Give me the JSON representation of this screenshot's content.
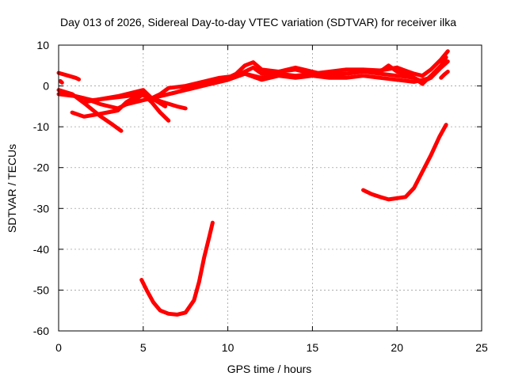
{
  "chart_data": {
    "type": "line",
    "title": "Day 013 of 2026, Sidereal Day-to-day VTEC variation (SDTVAR) for receiver ilka",
    "xlabel": "GPS time / hours",
    "ylabel": "SDTVAR / TECUs",
    "xlim": [
      0,
      25
    ],
    "ylim": [
      -60,
      10
    ],
    "xticks": [
      0,
      5,
      10,
      15,
      20,
      25
    ],
    "yticks": [
      -60,
      -50,
      -40,
      -30,
      -20,
      -10,
      0,
      10
    ],
    "xtick_labels": [
      "0",
      "5",
      "10",
      "15",
      "20",
      "25"
    ],
    "ytick_labels": [
      "-60",
      "-50",
      "-40",
      "-30",
      "-20",
      "-10",
      "0",
      "10"
    ],
    "grid": true,
    "color": "#ff0000",
    "series": [
      {
        "name": "arc-a",
        "x": [
          0.0,
          0.5,
          1.0,
          1.2
        ],
        "y": [
          3.2,
          2.6,
          2.0,
          1.6
        ]
      },
      {
        "name": "arc-b",
        "x": [
          0.1,
          0.2
        ],
        "y": [
          1.2,
          0.8
        ]
      },
      {
        "name": "arc-c",
        "x": [
          0.0,
          1.0,
          2.0,
          3.0,
          4.0,
          4.8,
          5.5,
          6.2,
          7.0,
          7.5
        ],
        "y": [
          -2.0,
          -2.5,
          -3.5,
          -3.0,
          -2.5,
          -2.0,
          -3.0,
          -4.0,
          -5.0,
          -5.5
        ]
      },
      {
        "name": "arc-d",
        "x": [
          0.0,
          0.8,
          1.6,
          2.5,
          3.2,
          3.7
        ],
        "y": [
          -1.0,
          -2.0,
          -4.5,
          -7.5,
          -9.5,
          -11.0
        ]
      },
      {
        "name": "arc-e",
        "x": [
          0.5,
          1.5,
          2.5,
          3.5,
          4.5,
          5.0,
          5.5,
          6.0,
          6.5
        ],
        "y": [
          -2.0,
          -3.0,
          -4.5,
          -5.5,
          -3.5,
          -2.0,
          -4.0,
          -6.5,
          -8.5
        ]
      },
      {
        "name": "arc-f",
        "x": [
          0.8,
          1.5,
          2.5,
          3.5,
          4.0,
          5.0,
          5.5,
          6.3
        ],
        "y": [
          -6.5,
          -7.5,
          -6.8,
          -6.0,
          -4.0,
          -1.5,
          -3.0,
          -5.0
        ]
      },
      {
        "name": "arc-g",
        "x": [
          1.5,
          2.5,
          3.5,
          4.5,
          5.0,
          5.5,
          6.0,
          6.5,
          7.5,
          8.5,
          9.5,
          10.5,
          11.0,
          11.5,
          12.0,
          13.0,
          14.0,
          15.0,
          16.0,
          17.0,
          18.0,
          19.0,
          20.0,
          21.0,
          21.5,
          22.0,
          22.6,
          23.0
        ],
        "y": [
          -4.0,
          -3.2,
          -2.5,
          -1.5,
          -1.0,
          -3.0,
          -2.0,
          -0.5,
          0.0,
          1.0,
          2.0,
          2.5,
          3.5,
          4.5,
          3.0,
          3.5,
          4.0,
          3.0,
          3.5,
          4.0,
          4.0,
          3.8,
          4.5,
          3.0,
          2.5,
          4.0,
          6.5,
          8.5
        ]
      },
      {
        "name": "arc-h",
        "x": [
          4.0,
          5.0,
          6.0,
          7.0,
          8.0,
          9.0,
          10.0,
          11.0,
          12.0,
          13.0,
          14.0,
          15.0,
          16.0,
          17.0,
          18.0,
          19.0,
          20.0,
          21.0,
          21.5,
          22.0,
          22.6,
          23.0
        ],
        "y": [
          -4.5,
          -3.5,
          -2.5,
          -1.5,
          -0.5,
          0.5,
          1.5,
          3.0,
          2.0,
          3.0,
          2.5,
          3.0,
          3.0,
          3.0,
          3.5,
          3.0,
          2.5,
          2.0,
          1.0,
          2.0,
          4.5,
          6.0
        ]
      },
      {
        "name": "arc-i",
        "x": [
          6.0,
          7.0,
          8.0,
          9.0,
          10.0,
          10.5,
          11.0,
          11.5,
          12.0,
          13.0,
          14.0,
          15.0,
          16.0,
          17.0,
          18.0,
          19.0,
          19.5,
          20.0,
          20.5,
          21.0,
          21.5,
          22.0,
          22.6,
          22.9
        ],
        "y": [
          -2.5,
          -1.5,
          0.0,
          1.0,
          2.0,
          3.0,
          5.0,
          5.8,
          4.0,
          3.5,
          4.5,
          3.5,
          2.5,
          3.0,
          3.5,
          3.5,
          5.0,
          3.5,
          3.0,
          2.0,
          0.5,
          2.5,
          5.0,
          7.0
        ]
      },
      {
        "name": "arc-j",
        "x": [
          9.0,
          10.0,
          11.0,
          12.0,
          13.0,
          14.0,
          15.0,
          16.0,
          17.0,
          18.0,
          19.0,
          20.0,
          21.0,
          22.0
        ],
        "y": [
          0.5,
          1.5,
          3.0,
          1.5,
          2.5,
          2.0,
          2.5,
          2.0,
          2.0,
          2.5,
          2.0,
          1.5,
          1.0,
          2.0
        ]
      },
      {
        "name": "arc-k",
        "x": [
          22.6,
          22.8,
          23.0
        ],
        "y": [
          2.0,
          2.8,
          3.5
        ]
      },
      {
        "name": "arc-l",
        "x": [
          4.9,
          5.2,
          5.6,
          6.0,
          6.5,
          7.0,
          7.5,
          8.0,
          8.3,
          8.6,
          8.9,
          9.1
        ],
        "y": [
          -47.5,
          -50.0,
          -53.0,
          -55.0,
          -55.8,
          -56.0,
          -55.5,
          -52.5,
          -48.0,
          -42.0,
          -37.0,
          -33.5
        ]
      },
      {
        "name": "arc-m",
        "x": [
          18.0,
          18.5,
          19.0,
          19.5,
          20.0,
          20.5,
          21.0,
          21.5,
          22.0,
          22.5,
          22.9
        ],
        "y": [
          -25.5,
          -26.5,
          -27.2,
          -27.8,
          -27.5,
          -27.2,
          -25.0,
          -21.0,
          -17.0,
          -12.5,
          -9.5
        ]
      }
    ]
  }
}
